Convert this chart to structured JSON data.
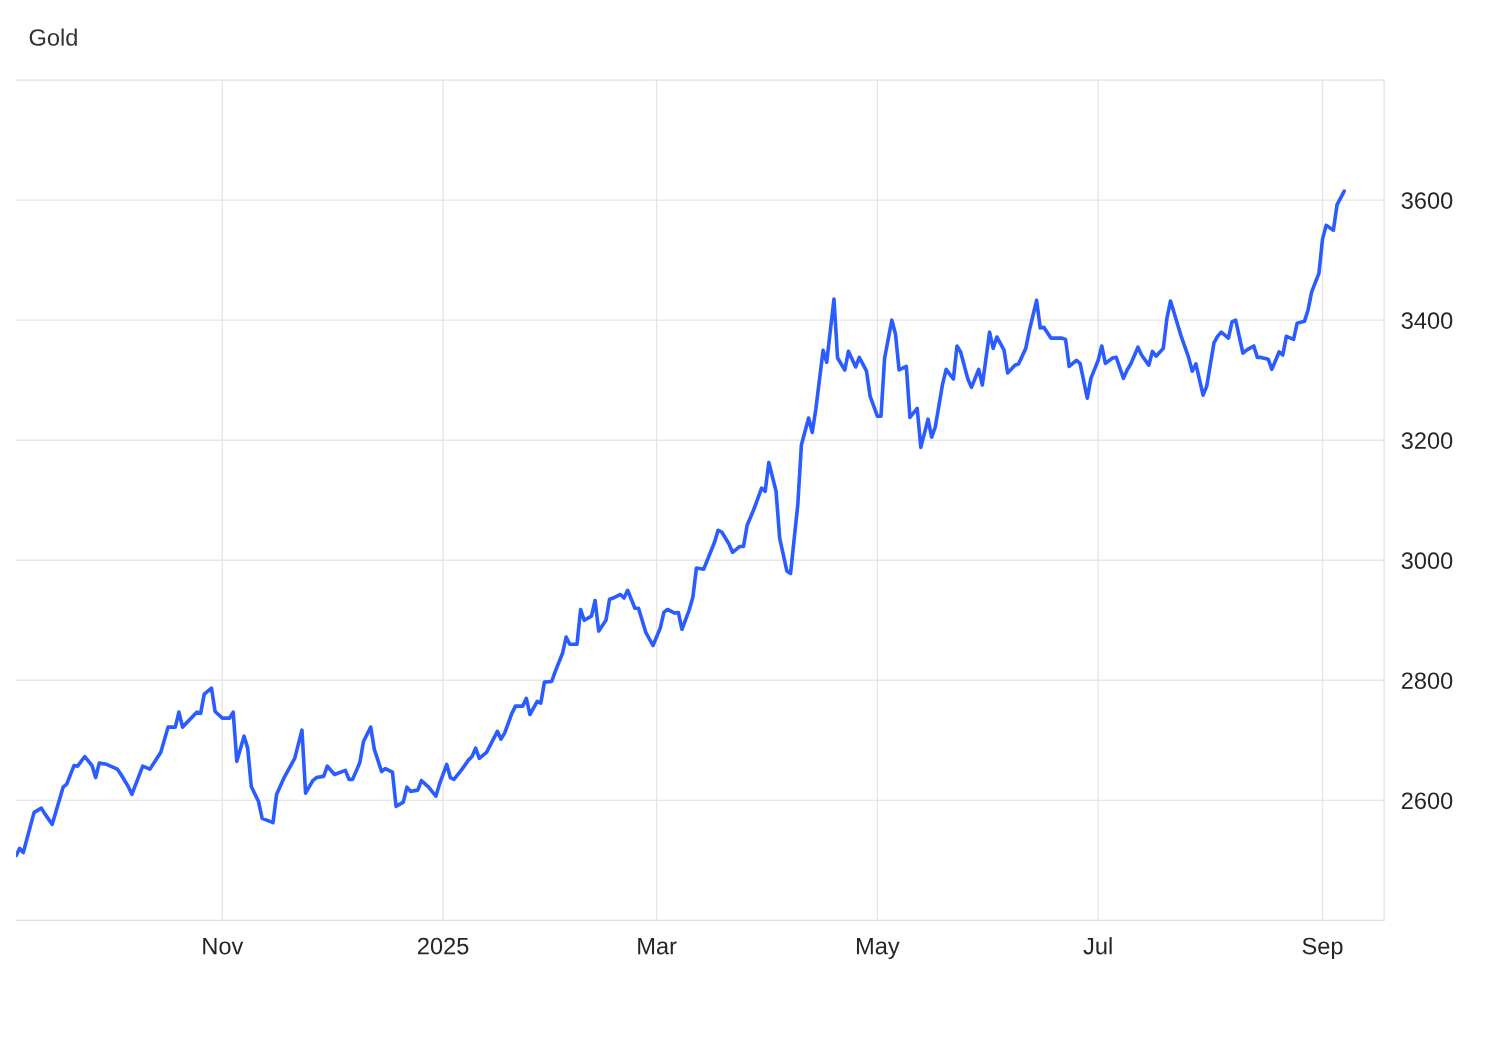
{
  "chart_data": {
    "type": "line",
    "title": "Gold",
    "x": [
      "2024-09-05",
      "2024-09-06",
      "2024-09-07",
      "2024-09-09",
      "2024-09-10",
      "2024-09-12",
      "2024-09-13",
      "2024-09-15",
      "2024-09-18",
      "2024-09-19",
      "2024-09-21",
      "2024-09-22",
      "2024-09-24",
      "2024-09-26",
      "2024-09-27",
      "2024-09-28",
      "2024-09-30",
      "2024-10-03",
      "2024-10-04",
      "2024-10-06",
      "2024-10-07",
      "2024-10-10",
      "2024-10-12",
      "2024-10-15",
      "2024-10-17",
      "2024-10-19",
      "2024-10-20",
      "2024-10-21",
      "2024-10-25",
      "2024-10-26",
      "2024-10-27",
      "2024-10-29",
      "2024-10-30",
      "2024-11-01",
      "2024-11-03",
      "2024-11-04",
      "2024-11-05",
      "2024-11-07",
      "2024-11-08",
      "2024-11-09",
      "2024-11-11",
      "2024-11-12",
      "2024-11-15",
      "2024-11-16",
      "2024-11-18",
      "2024-11-21",
      "2024-11-23",
      "2024-11-24",
      "2024-11-26",
      "2024-11-27",
      "2024-11-29",
      "2024-11-30",
      "2024-12-02",
      "2024-12-05",
      "2024-12-06",
      "2024-12-07",
      "2024-12-09",
      "2024-12-10",
      "2024-12-12",
      "2024-12-13",
      "2024-12-15",
      "2024-12-16",
      "2024-12-18",
      "2024-12-19",
      "2024-12-21",
      "2024-12-22",
      "2024-12-23",
      "2024-12-25",
      "2024-12-26",
      "2024-12-28",
      "2024-12-30",
      "2024-12-31",
      "2025-01-02",
      "2025-01-03",
      "2025-01-04",
      "2025-01-06",
      "2025-01-08",
      "2025-01-09",
      "2025-01-10",
      "2025-01-11",
      "2025-01-13",
      "2025-01-16",
      "2025-01-17",
      "2025-01-18",
      "2025-01-20",
      "2025-01-21",
      "2025-01-23",
      "2025-01-24",
      "2025-01-25",
      "2025-01-27",
      "2025-01-28",
      "2025-01-29",
      "2025-01-31",
      "2025-02-01",
      "2025-02-03",
      "2025-02-04",
      "2025-02-05",
      "2025-02-07",
      "2025-02-08",
      "2025-02-09",
      "2025-02-11",
      "2025-02-12",
      "2025-02-13",
      "2025-02-15",
      "2025-02-16",
      "2025-02-17",
      "2025-02-19",
      "2025-02-20",
      "2025-02-21",
      "2025-02-23",
      "2025-02-24",
      "2025-02-26",
      "2025-02-28",
      "2025-03-02",
      "2025-03-03",
      "2025-03-04",
      "2025-03-06",
      "2025-03-07",
      "2025-03-08",
      "2025-03-10",
      "2025-03-11",
      "2025-03-12",
      "2025-03-14",
      "2025-03-15",
      "2025-03-17",
      "2025-03-18",
      "2025-03-19",
      "2025-03-21",
      "2025-03-22",
      "2025-03-24",
      "2025-03-25",
      "2025-03-26",
      "2025-03-28",
      "2025-03-30",
      "2025-03-31",
      "2025-04-01",
      "2025-04-03",
      "2025-04-04",
      "2025-04-06",
      "2025-04-07",
      "2025-04-09",
      "2025-04-10",
      "2025-04-12",
      "2025-04-13",
      "2025-04-14",
      "2025-04-16",
      "2025-04-17",
      "2025-04-19",
      "2025-04-20",
      "2025-04-22",
      "2025-04-23",
      "2025-04-25",
      "2025-04-26",
      "2025-04-28",
      "2025-04-29",
      "2025-05-01",
      "2025-05-02",
      "2025-05-03",
      "2025-05-05",
      "2025-05-06",
      "2025-05-07",
      "2025-05-09",
      "2025-05-10",
      "2025-05-12",
      "2025-05-13",
      "2025-05-15",
      "2025-05-16",
      "2025-05-17",
      "2025-05-19",
      "2025-05-20",
      "2025-05-22",
      "2025-05-23",
      "2025-05-24",
      "2025-05-26",
      "2025-05-27",
      "2025-05-29",
      "2025-05-30",
      "2025-06-01",
      "2025-06-02",
      "2025-06-03",
      "2025-06-05",
      "2025-06-06",
      "2025-06-08",
      "2025-06-09",
      "2025-06-11",
      "2025-06-12",
      "2025-06-14",
      "2025-06-15",
      "2025-06-16",
      "2025-06-18",
      "2025-06-19",
      "2025-06-21",
      "2025-06-22",
      "2025-06-23",
      "2025-06-25",
      "2025-06-26",
      "2025-06-28",
      "2025-06-29",
      "2025-07-01",
      "2025-07-02",
      "2025-07-03",
      "2025-07-05",
      "2025-07-06",
      "2025-07-08",
      "2025-07-09",
      "2025-07-10",
      "2025-07-12",
      "2025-07-13",
      "2025-07-15",
      "2025-07-16",
      "2025-07-17",
      "2025-07-19",
      "2025-07-20",
      "2025-07-21",
      "2025-07-23",
      "2025-07-24",
      "2025-07-26",
      "2025-07-27",
      "2025-07-28",
      "2025-07-30",
      "2025-07-31",
      "2025-08-02",
      "2025-08-03",
      "2025-08-04",
      "2025-08-06",
      "2025-08-07",
      "2025-08-08",
      "2025-08-10",
      "2025-08-11",
      "2025-08-13",
      "2025-08-14",
      "2025-08-15",
      "2025-08-17",
      "2025-08-18",
      "2025-08-20",
      "2025-08-21",
      "2025-08-22",
      "2025-08-24",
      "2025-08-25",
      "2025-08-27",
      "2025-08-28",
      "2025-08-29",
      "2025-08-31",
      "2025-09-01",
      "2025-09-02",
      "2025-09-04",
      "2025-09-05",
      "2025-09-07"
    ],
    "series": [
      {
        "color": "#2b5cff",
        "values": [
          2508,
          2520,
          2513,
          2558,
          2580,
          2587,
          2577,
          2560,
          2622,
          2627,
          2658,
          2657,
          2673,
          2658,
          2638,
          2662,
          2660,
          2652,
          2643,
          2623,
          2610,
          2657,
          2652,
          2680,
          2722,
          2722,
          2747,
          2722,
          2747,
          2745,
          2777,
          2787,
          2748,
          2737,
          2737,
          2747,
          2665,
          2707,
          2687,
          2623,
          2598,
          2570,
          2563,
          2610,
          2637,
          2670,
          2717,
          2612,
          2633,
          2638,
          2640,
          2657,
          2643,
          2650,
          2635,
          2635,
          2663,
          2698,
          2722,
          2685,
          2648,
          2653,
          2647,
          2590,
          2597,
          2622,
          2615,
          2617,
          2633,
          2622,
          2607,
          2627,
          2660,
          2638,
          2635,
          2650,
          2667,
          2673,
          2687,
          2670,
          2680,
          2715,
          2702,
          2712,
          2745,
          2757,
          2757,
          2770,
          2743,
          2765,
          2762,
          2797,
          2798,
          2815,
          2845,
          2872,
          2860,
          2860,
          2918,
          2900,
          2907,
          2933,
          2882,
          2900,
          2935,
          2937,
          2943,
          2937,
          2950,
          2920,
          2920,
          2880,
          2858,
          2887,
          2913,
          2918,
          2912,
          2913,
          2885,
          2917,
          2938,
          2987,
          2985,
          3000,
          3030,
          3050,
          3047,
          3027,
          3013,
          3023,
          3023,
          3058,
          3087,
          3120,
          3115,
          3163,
          3115,
          3037,
          2982,
          2978,
          3092,
          3192,
          3237,
          3213,
          3252,
          3350,
          3330,
          3435,
          3337,
          3317,
          3348,
          3322,
          3338,
          3315,
          3273,
          3240,
          3240,
          3337,
          3400,
          3377,
          3317,
          3323,
          3238,
          3253,
          3188,
          3235,
          3205,
          3222,
          3293,
          3318,
          3302,
          3357,
          3347,
          3302,
          3288,
          3318,
          3292,
          3380,
          3353,
          3372,
          3350,
          3312,
          3325,
          3327,
          3353,
          3383,
          3433,
          3387,
          3388,
          3370,
          3370,
          3370,
          3368,
          3323,
          3333,
          3328,
          3270,
          3303,
          3333,
          3357,
          3328,
          3337,
          3338,
          3303,
          3317,
          3327,
          3355,
          3342,
          3325,
          3348,
          3340,
          3353,
          3403,
          3432,
          3392,
          3372,
          3338,
          3315,
          3327,
          3275,
          3290,
          3362,
          3373,
          3380,
          3370,
          3397,
          3400,
          3345,
          3350,
          3357,
          3338,
          3338,
          3335,
          3318,
          3347,
          3342,
          3373,
          3368,
          3395,
          3398,
          3417,
          3447,
          3478,
          3535,
          3558,
          3550,
          3592,
          3615
        ]
      }
    ],
    "xlim": [
      "2024-09-05",
      "2025-09-18"
    ],
    "xticks": [
      {
        "value": "2024-11-01",
        "label": "Nov"
      },
      {
        "value": "2025-01-01",
        "label": "2025"
      },
      {
        "value": "2025-03-01",
        "label": "Mar"
      },
      {
        "value": "2025-05-01",
        "label": "May"
      },
      {
        "value": "2025-07-01",
        "label": "Jul"
      },
      {
        "value": "2025-09-01",
        "label": "Sep"
      }
    ],
    "ylim": [
      2400,
      3800
    ],
    "yticks": [
      2600,
      2800,
      3000,
      3200,
      3400,
      3600
    ],
    "grid": true,
    "marker": "none",
    "line_style": "solid"
  }
}
